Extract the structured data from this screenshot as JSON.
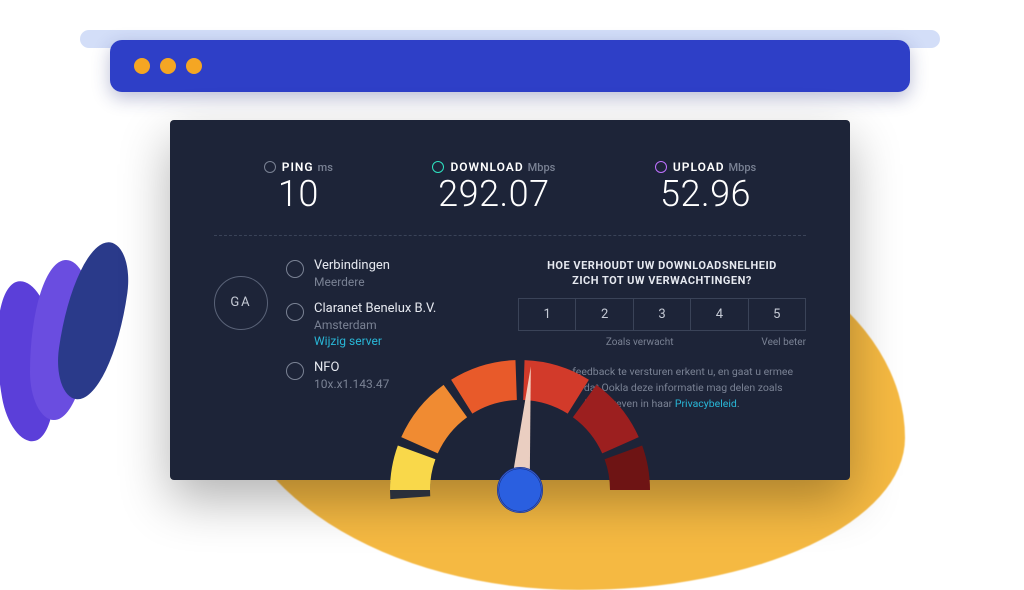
{
  "browser_bar": {
    "bg_color": "#2e3fc7",
    "stroke_color": "#c0d0f5",
    "dot_color": "#f5a623"
  },
  "panel_bg": "#1d2438",
  "metrics": {
    "ping": {
      "label": "PING",
      "unit": "ms",
      "value": "10",
      "icon_color": "#7a8294"
    },
    "download": {
      "label": "DOWNLOAD",
      "unit": "Mbps",
      "value": "292.07",
      "icon_color": "#2de2c0"
    },
    "upload": {
      "label": "UPLOAD",
      "unit": "Mbps",
      "value": "52.96",
      "icon_color": "#bf71ff"
    }
  },
  "ga_label": "GA",
  "info": {
    "connections": {
      "title": "Verbindingen",
      "subtitle": "Meerdere"
    },
    "provider": {
      "title": "Claranet Benelux B.V.",
      "subtitle": "Amsterdam",
      "link": "Wijzig server"
    },
    "user": {
      "title": "NFO",
      "subtitle": "10x.x1.143.47"
    }
  },
  "survey": {
    "question_line1": "HOE VERHOUDT UW DOWNLOADSNELHEID",
    "question_line2": "ZICH TOT UW VERWACHTINGEN?",
    "options": [
      "1",
      "2",
      "3",
      "4",
      "5"
    ],
    "label_mid": "Zoals verwacht",
    "label_right": "Veel beter"
  },
  "disclaimer": {
    "text_before": "Door uw feedback te versturen erkent u, en gaat u ermee akkoord, dat Ookla deze informatie mag delen zoals beschreven in haar ",
    "link": "Privacybeleid",
    "text_after": "."
  },
  "gauge": {
    "bg_arc_color": "#2a2f3a",
    "segments": [
      {
        "start_deg": 180,
        "end_deg": 200,
        "color": "#f9d84a"
      },
      {
        "start_deg": 204,
        "end_deg": 234,
        "color": "#f08b32"
      },
      {
        "start_deg": 238,
        "end_deg": 268,
        "color": "#e85a2a"
      },
      {
        "start_deg": 272,
        "end_deg": 302,
        "color": "#d23a2a"
      },
      {
        "start_deg": 306,
        "end_deg": 336,
        "color": "#9c1f1f"
      },
      {
        "start_deg": 340,
        "end_deg": 360,
        "color": "#6e1414"
      }
    ],
    "needle_angle_deg": 275,
    "needle_color": "#f5d8c8",
    "knob_color": "#2a5fe0",
    "outer_radius": 130,
    "inner_radius": 90
  }
}
